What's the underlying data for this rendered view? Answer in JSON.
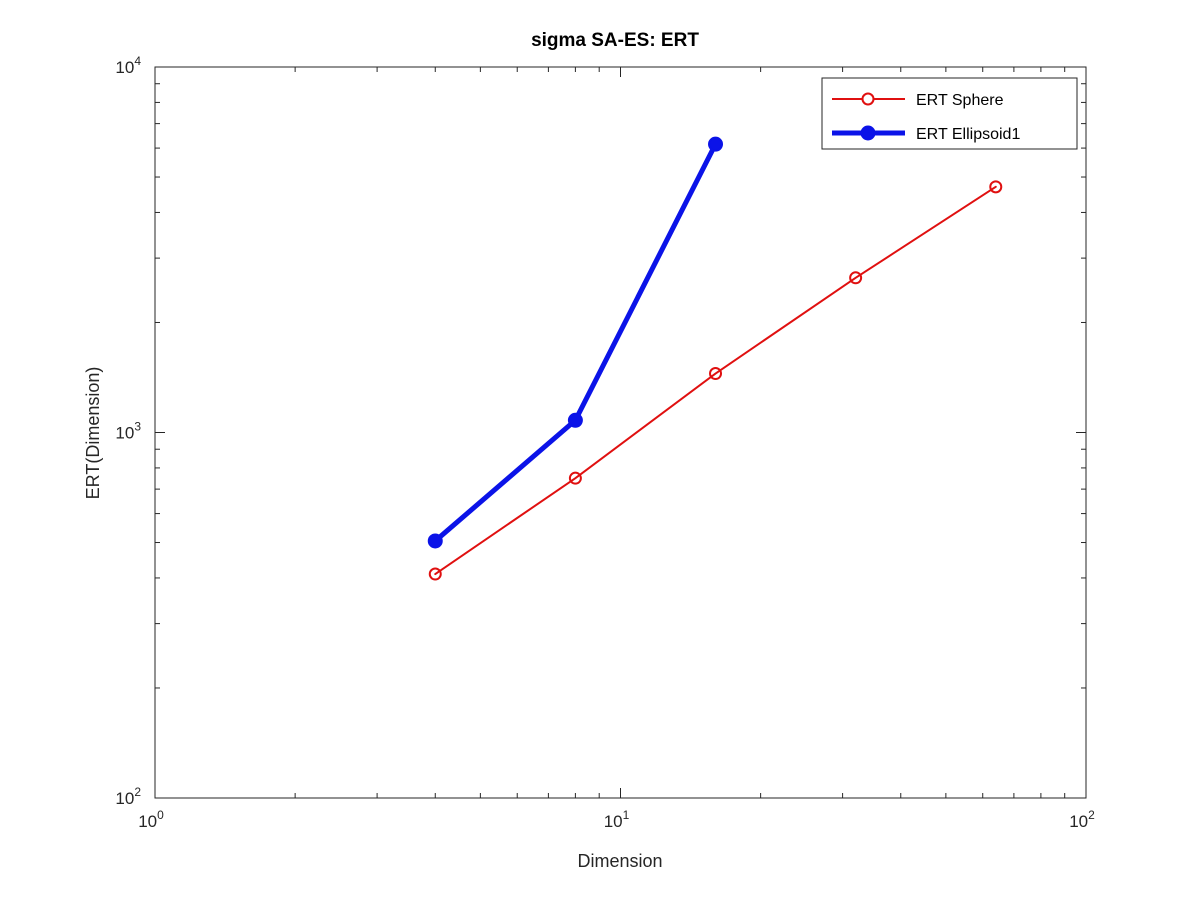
{
  "chart_data": {
    "type": "line",
    "title": "sigma  SA-ES: ERT",
    "xlabel": "Dimension",
    "ylabel": "ERT(Dimension)",
    "xscale": "log",
    "yscale": "log",
    "xlim": [
      1,
      100
    ],
    "ylim": [
      100,
      10000
    ],
    "x_tick_labels": [
      {
        "value": 1,
        "base": "10",
        "exp": "0"
      },
      {
        "value": 10,
        "base": "10",
        "exp": "1"
      },
      {
        "value": 100,
        "base": "10",
        "exp": "2"
      }
    ],
    "y_tick_labels": [
      {
        "value": 100,
        "base": "10",
        "exp": "2"
      },
      {
        "value": 1000,
        "base": "10",
        "exp": "3"
      },
      {
        "value": 10000,
        "base": "10",
        "exp": "4"
      }
    ],
    "grid": false,
    "legend_position": "top-right",
    "series": [
      {
        "name": "ERT Sphere",
        "color": "#e01010",
        "marker": "open-circle",
        "line": "thin",
        "x": [
          4,
          8,
          16,
          32,
          64
        ],
        "y": [
          410,
          750,
          1450,
          2650,
          4700
        ]
      },
      {
        "name": "ERT Ellipsoid1",
        "color": "#0b13e8",
        "marker": "filled-circle",
        "line": "thick",
        "x": [
          4,
          8,
          16
        ],
        "y": [
          505,
          1080,
          6150
        ]
      }
    ]
  }
}
